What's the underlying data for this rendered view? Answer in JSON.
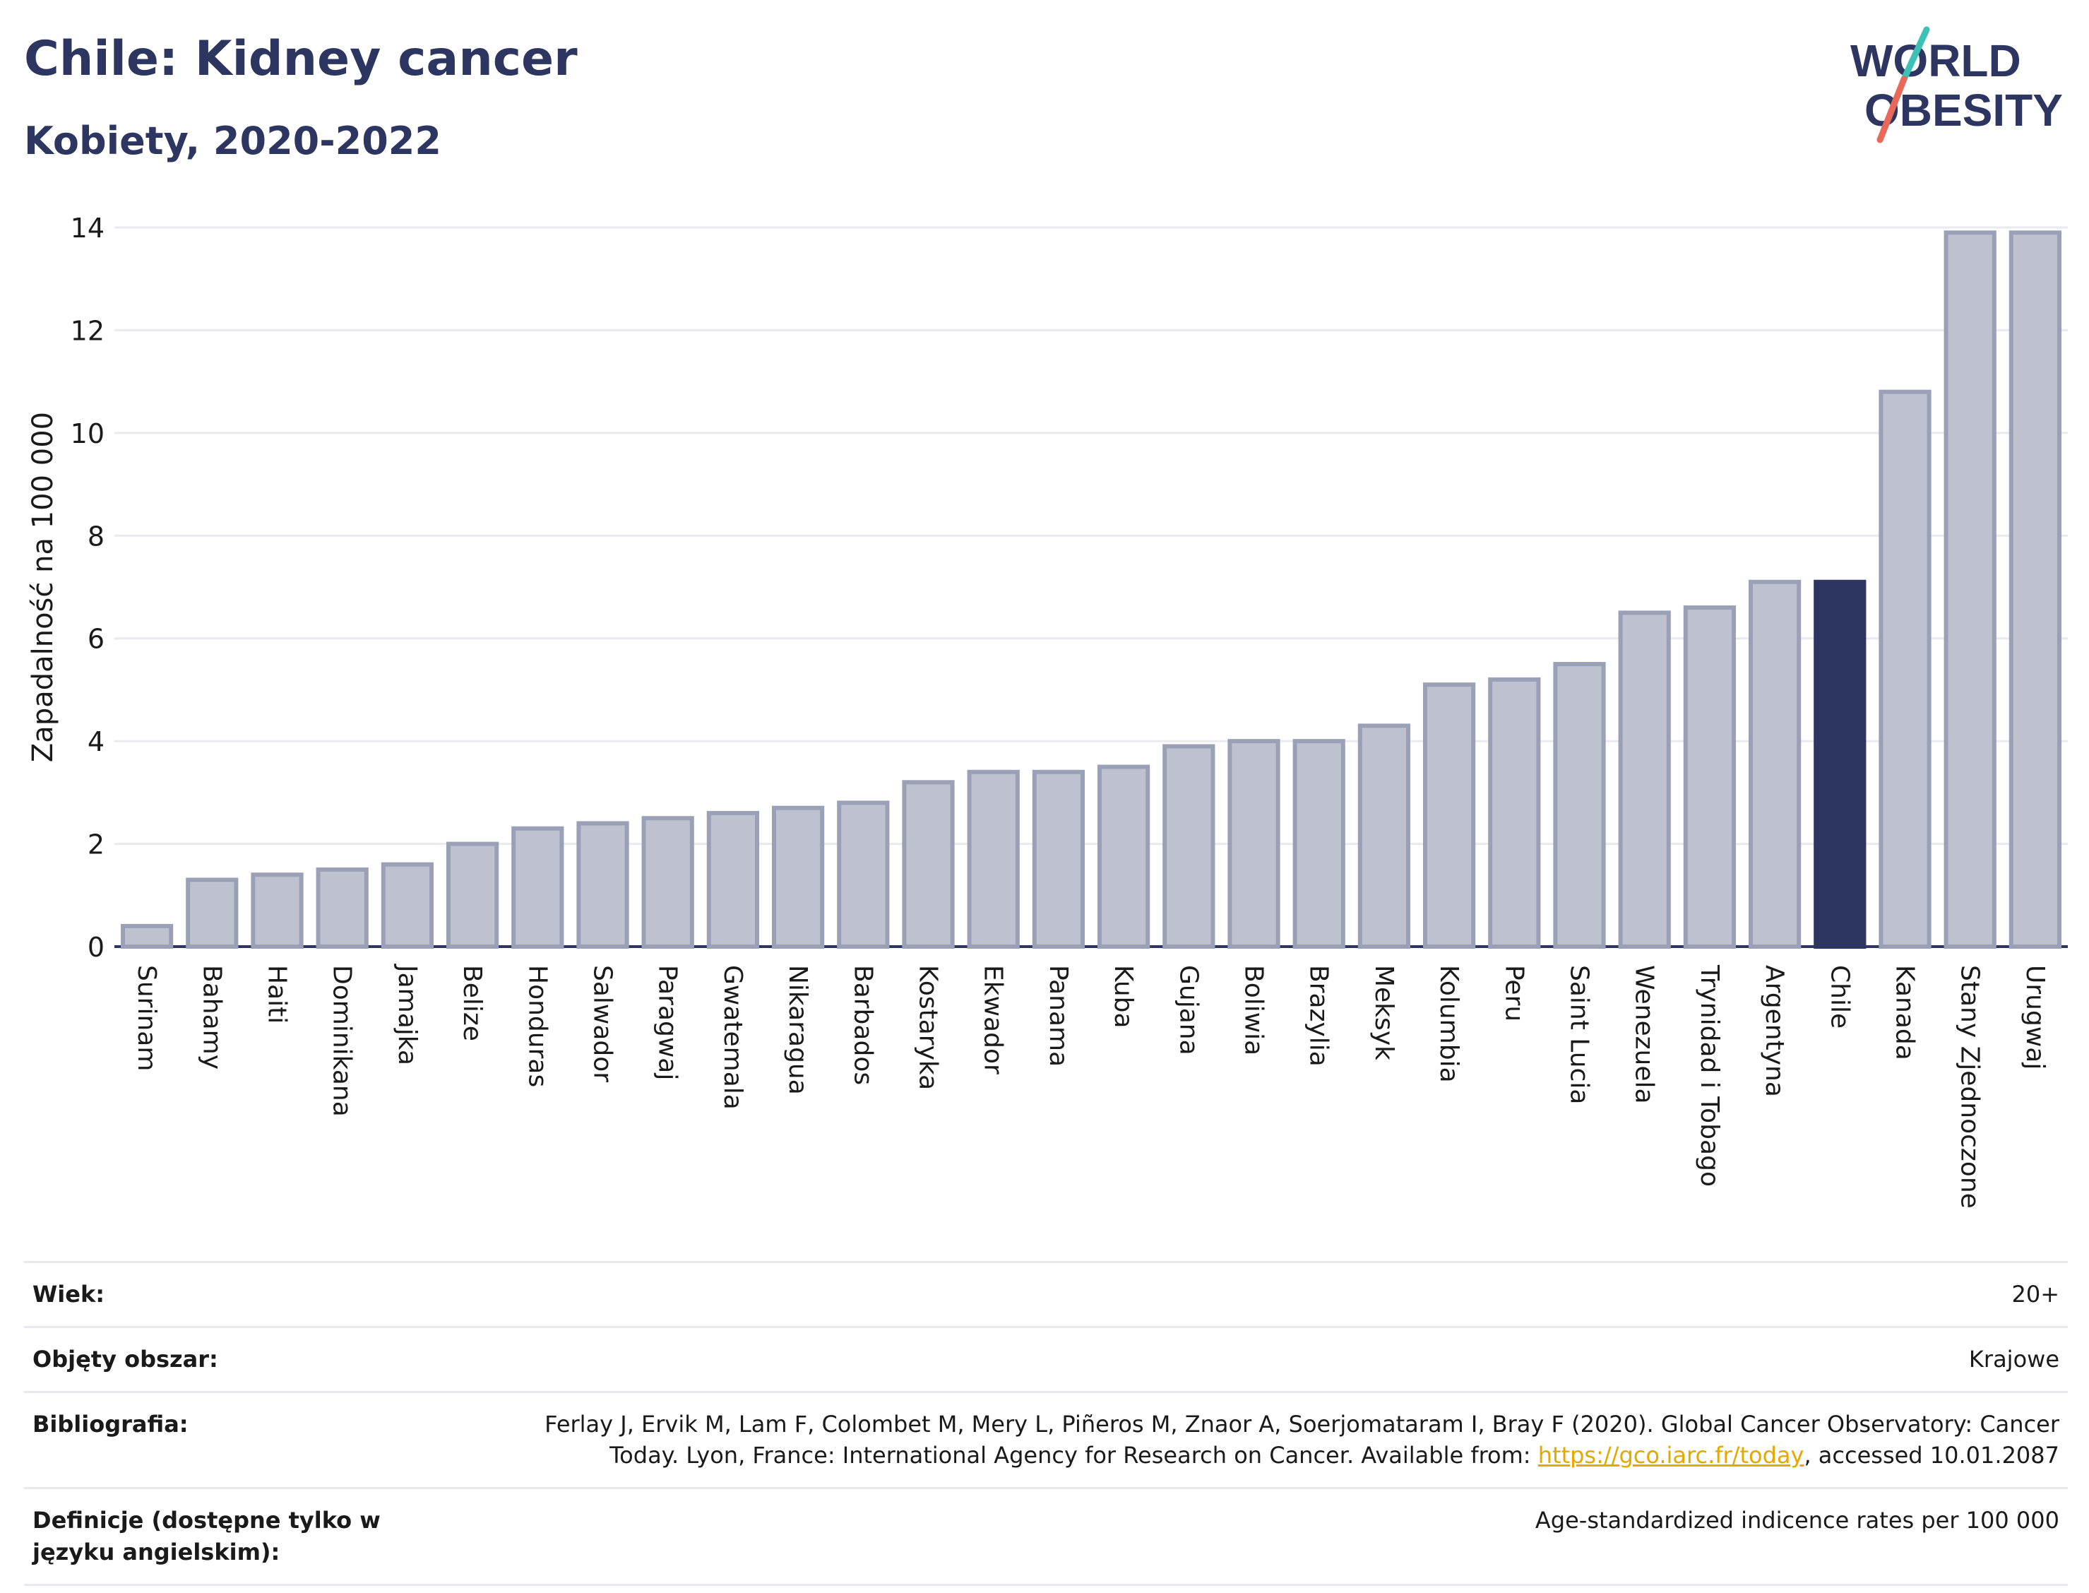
{
  "header": {
    "title": "Chile: Kidney cancer",
    "subtitle": "Kobiety, 2020-2022"
  },
  "logo": {
    "line1": "WORLD",
    "line2": "OBESITY"
  },
  "colors": {
    "bar": "#bec2d0",
    "bar_stroke": "#9aa0b6",
    "highlight": "#2d3561",
    "grid": "#e8eaf0",
    "axis": "#2d3561"
  },
  "chart_data": {
    "type": "bar",
    "ylabel": "Zapadalność na 100 000",
    "ylim": [
      0,
      14
    ],
    "yticks": [
      0,
      2,
      4,
      6,
      8,
      10,
      12,
      14
    ],
    "grid": true,
    "highlight": "Chile",
    "categories": [
      "Surinam",
      "Bahamy",
      "Haiti",
      "Dominikana",
      "Jamajka",
      "Belize",
      "Honduras",
      "Salwador",
      "Paragwaj",
      "Gwatemala",
      "Nikaragua",
      "Barbados",
      "Kostaryka",
      "Ekwador",
      "Panama",
      "Kuba",
      "Gujana",
      "Boliwia",
      "Brazylia",
      "Meksyk",
      "Kolumbia",
      "Peru",
      "Saint Lucia",
      "Wenezuela",
      "Trynidad i Tobago",
      "Argentyna",
      "Chile",
      "Kanada",
      "Stany Zjednoczone",
      "Urugwaj"
    ],
    "values": [
      0.4,
      1.3,
      1.4,
      1.5,
      1.6,
      2.0,
      2.3,
      2.4,
      2.5,
      2.6,
      2.7,
      2.8,
      3.2,
      3.4,
      3.4,
      3.5,
      3.9,
      4.0,
      4.0,
      4.3,
      5.1,
      5.2,
      5.5,
      6.5,
      6.6,
      7.1,
      7.1,
      10.8,
      13.9,
      13.9
    ]
  },
  "info": {
    "age_label": "Wiek:",
    "age_value": "20+",
    "coverage_label": "Objęty obszar:",
    "coverage_value": "Krajowe",
    "bib_label": "Bibliografia:",
    "bib_text_1": "Ferlay J, Ervik M, Lam F, Colombet M, Mery L, Piñeros M, Znaor A, Soerjomataram I, Bray F (2020). Global Cancer Observatory: Cancer Today. Lyon, France: International Agency for Research on Cancer. Available from: ",
    "bib_link": "https://gco.iarc.fr/today",
    "bib_text_2": ", accessed 10.01.2087",
    "def_label": "Definicje (dostępne tylko w języku angielskim):",
    "def_value": "Age-standardized indicence rates per 100 000"
  }
}
